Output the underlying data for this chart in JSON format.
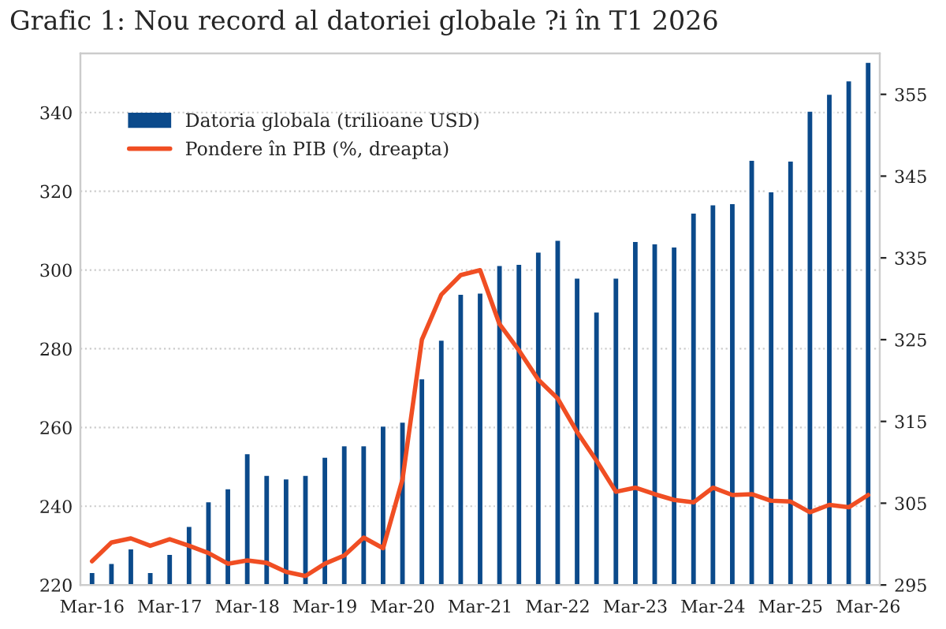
{
  "chart_data": {
    "type": "bar",
    "title": "Grafic 1: Nou record al datoriei globale ?i în T1 2026",
    "categories": [
      "Mar-16",
      null,
      null,
      null,
      "Mar-17",
      null,
      null,
      null,
      "Mar-18",
      null,
      null,
      null,
      "Mar-19",
      null,
      null,
      null,
      "Mar-20",
      null,
      null,
      null,
      "Mar-21",
      null,
      null,
      null,
      "Mar-22",
      null,
      null,
      null,
      "Mar-23",
      null,
      null,
      null,
      "Mar-24",
      null,
      null,
      null,
      "Mar-25",
      null,
      null,
      null,
      "Mar-26"
    ],
    "series": [
      {
        "name": "Datoria globala (trilioane USD)",
        "color": "#0b4a8b",
        "values": [
          223.3,
          225.6,
          229.3,
          223.3,
          227.9,
          235,
          241.3,
          244.6,
          253.5,
          248,
          247.1,
          248,
          252.6,
          255.5,
          255.5,
          260.5,
          261.5,
          272.5,
          282.3,
          294,
          294.3,
          301.3,
          301.6,
          304.7,
          307.7,
          298.1,
          289.5,
          298.1,
          307.4,
          306.8,
          306,
          314.6,
          316.7,
          317,
          328,
          320,
          327.8,
          340.5,
          344.8,
          348.2,
          352.9
        ]
      },
      {
        "name": "Pondere în PIB (%, dreapta)",
        "type": "line",
        "axis": "y2",
        "color": "#f04e23",
        "values": [
          297.9,
          300.2,
          300.7,
          299.8,
          300.6,
          299.8,
          298.9,
          297.6,
          298,
          297.7,
          296.6,
          296.1,
          297.6,
          298.6,
          300.8,
          299.5,
          307.9,
          325,
          330.5,
          332.9,
          333.5,
          326.9,
          323.7,
          320.1,
          317.8,
          313.7,
          310.2,
          306.4,
          306.9,
          306.1,
          305.4,
          305.1,
          306.9,
          306,
          306.1,
          305.3,
          305.2,
          303.9,
          304.8,
          304.5,
          306
        ]
      }
    ],
    "ylim": [
      220,
      355
    ],
    "yticks": [
      220,
      240,
      260,
      280,
      300,
      320,
      340
    ],
    "y2lim": [
      295,
      360
    ],
    "y2ticks": [
      295,
      305,
      315,
      325,
      335,
      345,
      355
    ],
    "grid": "y",
    "legend": "top left"
  }
}
